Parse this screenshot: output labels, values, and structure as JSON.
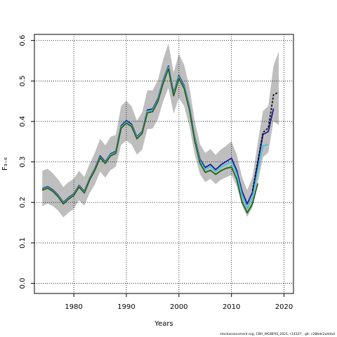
{
  "chart_data": {
    "type": "line",
    "title": "",
    "xlabel": "Years",
    "ylabel": "F₃₋₆",
    "xlim": [
      1972.5,
      2021.8
    ],
    "ylim": [
      -0.025,
      0.615
    ],
    "x_ticks": [
      1980,
      1990,
      2000,
      2010,
      2020
    ],
    "x_tick_labels": [
      "1980",
      "1990",
      "2000",
      "2010",
      "2020"
    ],
    "y_ticks": [
      0.0,
      0.1,
      0.2,
      0.3,
      0.4,
      0.5,
      0.6
    ],
    "y_tick_labels": [
      "0.0",
      "0.1",
      "0.2",
      "0.3",
      "0.4",
      "0.5",
      "0.6"
    ],
    "grid": true,
    "confidence_band": {
      "color": "#bebebe",
      "x": [
        1974,
        1975,
        1976,
        1977,
        1978,
        1979,
        1980,
        1981,
        1982,
        1983,
        1984,
        1985,
        1986,
        1987,
        1988,
        1989,
        1990,
        1991,
        1992,
        1993,
        1994,
        1995,
        1996,
        1997,
        1998,
        1999,
        2000,
        2001,
        2002,
        2003,
        2004,
        2005,
        2006,
        2007,
        2008,
        2009,
        2010,
        2011,
        2012,
        2013,
        2014,
        2015,
        2016,
        2017,
        2018,
        2019
      ],
      "upper": [
        0.278,
        0.283,
        0.272,
        0.257,
        0.238,
        0.25,
        0.258,
        0.278,
        0.263,
        0.295,
        0.323,
        0.357,
        0.341,
        0.362,
        0.367,
        0.438,
        0.451,
        0.437,
        0.402,
        0.422,
        0.477,
        0.477,
        0.502,
        0.553,
        0.593,
        0.521,
        0.567,
        0.54,
        0.484,
        0.402,
        0.344,
        0.322,
        0.332,
        0.317,
        0.331,
        0.34,
        0.351,
        0.318,
        0.263,
        0.23,
        0.263,
        0.347,
        0.426,
        0.438,
        0.538,
        0.572
      ],
      "lower": [
        0.191,
        0.197,
        0.191,
        0.18,
        0.163,
        0.175,
        0.184,
        0.205,
        0.192,
        0.223,
        0.244,
        0.276,
        0.261,
        0.28,
        0.288,
        0.342,
        0.353,
        0.343,
        0.318,
        0.33,
        0.381,
        0.382,
        0.406,
        0.45,
        0.483,
        0.419,
        0.458,
        0.438,
        0.388,
        0.318,
        0.27,
        0.25,
        0.258,
        0.245,
        0.256,
        0.262,
        0.268,
        0.24,
        0.194,
        0.164,
        0.188,
        0.248,
        0.312,
        0.323,
        0.401,
        0.391
      ]
    },
    "series": [
      {
        "color": "#1a1a9a",
        "width": 1.8,
        "x": [
          1974,
          1975,
          1976,
          1977,
          1978,
          1979,
          1980,
          1981,
          1982,
          1983,
          1984,
          1985,
          1986,
          1987,
          1988,
          1989,
          1990,
          1991,
          1992,
          1993,
          1994,
          1995,
          1996,
          1997,
          1998,
          1999,
          2000,
          2001,
          2002,
          2003,
          2004,
          2005,
          2006,
          2007,
          2008,
          2009,
          2010,
          2011,
          2012,
          2013,
          2014,
          2015,
          2016,
          2017,
          2018
        ],
        "values": [
          0.234,
          0.239,
          0.231,
          0.218,
          0.2,
          0.212,
          0.221,
          0.242,
          0.227,
          0.259,
          0.283,
          0.315,
          0.3,
          0.32,
          0.326,
          0.389,
          0.402,
          0.393,
          0.362,
          0.375,
          0.428,
          0.431,
          0.456,
          0.501,
          0.537,
          0.47,
          0.513,
          0.488,
          0.436,
          0.36,
          0.307,
          0.286,
          0.294,
          0.281,
          0.293,
          0.301,
          0.309,
          0.279,
          0.228,
          0.196,
          0.225,
          0.297,
          0.368,
          0.375,
          0.432
        ]
      },
      {
        "color": "#3cc4e2",
        "width": 1.8,
        "x": [
          1974,
          1975,
          1976,
          1977,
          1978,
          1979,
          1980,
          1981,
          1982,
          1983,
          1984,
          1985,
          1986,
          1987,
          1988,
          1989,
          1990,
          1991,
          1992,
          1993,
          1994,
          1995,
          1996,
          1997,
          1998,
          1999,
          2000,
          2001,
          2002,
          2003,
          2004,
          2005,
          2006,
          2007,
          2008,
          2009,
          2010,
          2011,
          2012,
          2013,
          2014,
          2015,
          2016,
          2017
        ],
        "values": [
          0.232,
          0.237,
          0.229,
          0.216,
          0.198,
          0.21,
          0.219,
          0.24,
          0.225,
          0.257,
          0.281,
          0.312,
          0.298,
          0.318,
          0.324,
          0.386,
          0.399,
          0.39,
          0.36,
          0.373,
          0.425,
          0.428,
          0.453,
          0.498,
          0.534,
          0.467,
          0.51,
          0.485,
          0.433,
          0.357,
          0.303,
          0.281,
          0.288,
          0.276,
          0.287,
          0.294,
          0.3,
          0.27,
          0.219,
          0.185,
          0.212,
          0.279,
          0.34,
          0.343
        ]
      },
      {
        "color": "#7ab635",
        "width": 1.8,
        "x": [
          1974,
          1975,
          1976,
          1977,
          1978,
          1979,
          1980,
          1981,
          1982,
          1983,
          1984,
          1985,
          1986,
          1987,
          1988,
          1989,
          1990,
          1991,
          1992,
          1993,
          1994,
          1995,
          1996,
          1997,
          1998,
          1999,
          2000,
          2001,
          2002,
          2003,
          2004,
          2005,
          2006,
          2007,
          2008,
          2009,
          2010,
          2011,
          2012,
          2013,
          2014,
          2015
        ],
        "values": [
          0.231,
          0.236,
          0.228,
          0.215,
          0.197,
          0.209,
          0.218,
          0.239,
          0.224,
          0.256,
          0.28,
          0.311,
          0.297,
          0.316,
          0.322,
          0.384,
          0.397,
          0.388,
          0.358,
          0.371,
          0.422,
          0.425,
          0.45,
          0.495,
          0.531,
          0.464,
          0.507,
          0.482,
          0.429,
          0.353,
          0.298,
          0.275,
          0.28,
          0.27,
          0.279,
          0.285,
          0.288,
          0.258,
          0.203,
          0.176,
          0.198,
          0.245
        ]
      },
      {
        "color": "#1f5a1f",
        "width": 1.6,
        "x": [
          1974,
          1975,
          1976,
          1977,
          1978,
          1979,
          1980,
          1981,
          1982,
          1983,
          1984,
          1985,
          1986,
          1987,
          1988,
          1989,
          1990,
          1991,
          1992,
          1993,
          1994,
          1995,
          1996,
          1997,
          1998,
          1999,
          2000,
          2001,
          2002,
          2003,
          2004,
          2005,
          2006,
          2007,
          2008,
          2009,
          2010,
          2011,
          2012,
          2013,
          2014,
          2015
        ],
        "values": [
          0.23,
          0.235,
          0.227,
          0.214,
          0.196,
          0.208,
          0.217,
          0.238,
          0.223,
          0.255,
          0.279,
          0.31,
          0.296,
          0.315,
          0.321,
          0.383,
          0.396,
          0.387,
          0.357,
          0.37,
          0.421,
          0.424,
          0.449,
          0.494,
          0.53,
          0.463,
          0.506,
          0.481,
          0.428,
          0.352,
          0.297,
          0.274,
          0.279,
          0.269,
          0.278,
          0.284,
          0.287,
          0.257,
          0.201,
          0.174,
          0.196,
          0.247
        ]
      },
      {
        "color": "#000000",
        "width": 1.6,
        "dash": "3,2",
        "x": [
          2014,
          2015,
          2016,
          2017,
          2018,
          2019
        ],
        "values": [
          0.229,
          0.3,
          0.373,
          0.384,
          0.466,
          0.472
        ]
      }
    ],
    "footer": "stockassessment.org, CBH_WGBFAS_2021, r14327 , git: c28bdc2a44ad"
  }
}
